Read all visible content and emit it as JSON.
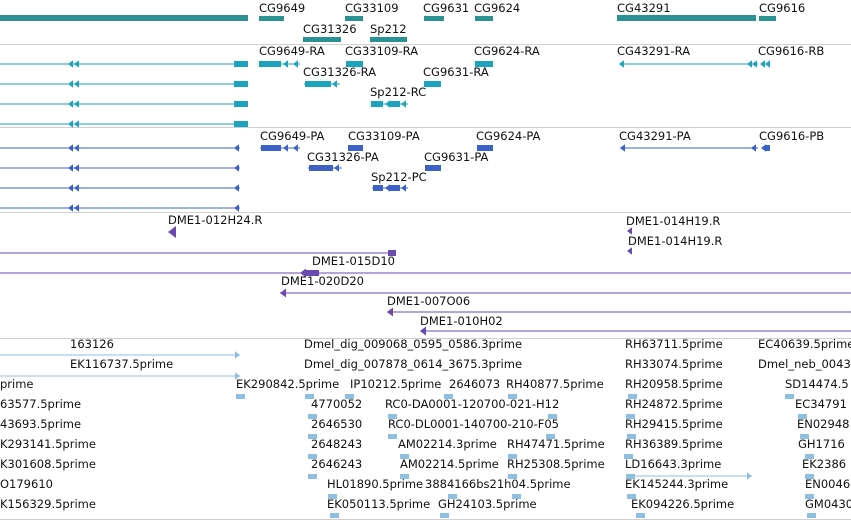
{
  "genes": {
    "labels": [
      "CG9649",
      "CG33109",
      "CG9631",
      "CG9624",
      "CG43291",
      "CG9616",
      "CG31326",
      "Sp212"
    ]
  },
  "transcripts_ra": {
    "labels": [
      "CG9649-RA",
      "CG33109-RA",
      "CG9624-RA",
      "CG43291-RA",
      "CG9616-RB",
      "CG31326-RA",
      "CG9631-RA",
      "Sp212-RC"
    ]
  },
  "transcripts_pa": {
    "labels": [
      "CG9649-PA",
      "CG33109-PA",
      "CG9624-PA",
      "CG43291-PA",
      "CG9616-PB",
      "CG31326-PA",
      "CG9631-PA",
      "Sp212-PC"
    ]
  },
  "clones": {
    "labels": [
      "DME1-012H24.R",
      "DME1-014H19.R",
      "DME1-014H19.R",
      "DME1-015D10",
      "DME1-020D20",
      "DME1-007O06",
      "DME1-010H02"
    ]
  },
  "ests": {
    "labels": [
      "163126",
      "Dmel_dig_009068_0595_0586.3prime",
      "RH63711.5prime",
      "EC40639.5prime",
      "EK116737.5prime",
      "Dmel_dig_007878_0614_3675.3prime",
      "RH33074.5prime",
      "Dmel_neb_0043",
      "prime",
      "EK290842.5prime",
      "IP10212.5prime",
      "2646073",
      "RH40877.5prime",
      "RH20958.5prime",
      "SD14474.5",
      "63577.5prime",
      "4770052",
      "RC0-DA0001-120700-021-H12",
      "RH24872.5prime",
      "EC34791",
      "43693.5prime",
      "2646530",
      "RC0-DL0001-140700-210-F05",
      "RH29415.5prime",
      "EN02948",
      "K293141.5prime",
      "2648243",
      "AM02214.3prime",
      "RH47471.5prime",
      "RH36389.5prime",
      "GH1716",
      "K301608.5prime",
      "2646243",
      "AM02214.5prime",
      "RH25308.5prime",
      "LD16643.3prime",
      "EK2386",
      "O179610",
      "HL01890.5prime",
      "3884166bs21h04.5prime",
      "EK145244.3prime",
      "EN0046",
      "K156329.5prime",
      "EK050113.5prime",
      "GH24103.5prime",
      "EK094226.5prime",
      "GM0430"
    ]
  },
  "colors": {
    "gene": "#2b9294",
    "transcript": "#1ca3bd",
    "protein": "#3d62c7",
    "clone": "#6b4ab0",
    "est": "#8fbfe0",
    "divider": "#d0d0d0"
  }
}
